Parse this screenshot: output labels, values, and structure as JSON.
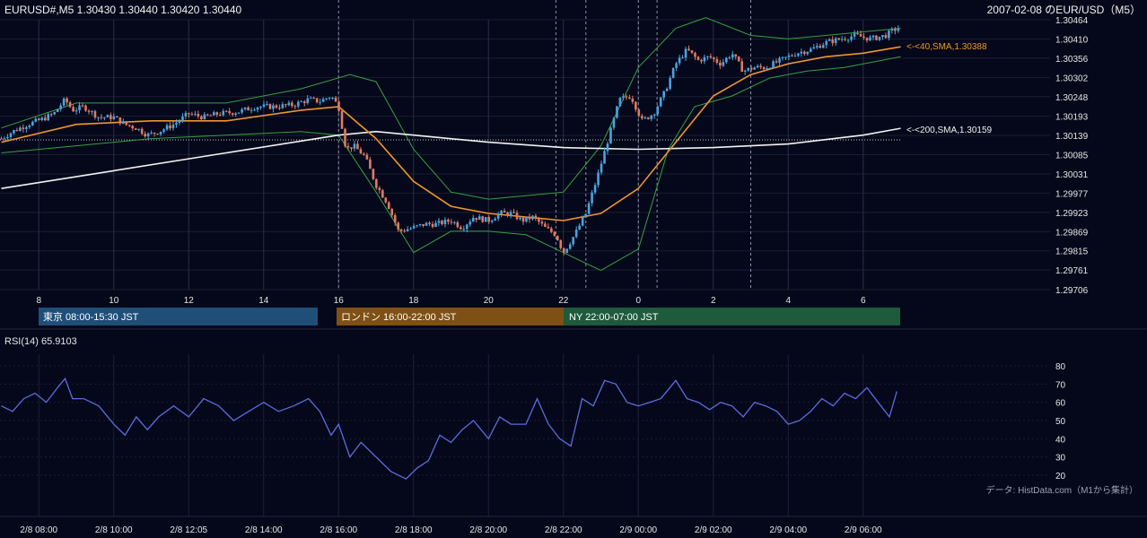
{
  "header": {
    "symbol_info": "EURUSD#,M5 1.30430 1.30440 1.30420 1.30440",
    "title": "2007-02-08 のEUR/USD（M5）"
  },
  "sessions": [
    {
      "label": "東京 08:00-15:30 JST",
      "color": "#1f4e79"
    },
    {
      "label": "ロンドン 16:00-22:00 JST",
      "color": "#7f5014"
    },
    {
      "label": "NY 22:00-07:00 JST",
      "color": "#1e5a3c"
    }
  ],
  "sma_labels": {
    "sma40": "<-<40,SMA,1.30388",
    "sma200": "<-<200,SMA,1.30159"
  },
  "rsi_label": "RSI(14) 65.9103",
  "source_note": "データ: HistData.com（M1から集計）",
  "colors": {
    "background": "#05081a",
    "candle_up": "#4aa3e0",
    "candle_down": "#e07a62",
    "sma40": "#f0962a",
    "sma200": "#f2f2f2",
    "bollinger": "#35a045",
    "rsi": "#5b6ce0",
    "grid": "#1a1e30"
  },
  "chart_data": [
    {
      "type": "candlestick",
      "symbol": "EURUSD",
      "timeframe": "M5",
      "x_tick_labels": [
        "8",
        "10",
        "12",
        "14",
        "16",
        "18",
        "20",
        "22",
        "0",
        "2",
        "4",
        "6"
      ],
      "y_tick_labels": [
        "1.30464",
        "1.30410",
        "1.30356",
        "1.30302",
        "1.30248",
        "1.30193",
        "1.30139",
        "1.30085",
        "1.30031",
        "1.29977",
        "1.29923",
        "1.29869",
        "1.29815",
        "1.29761",
        "1.29706"
      ],
      "ylim": [
        1.29706,
        1.30464
      ],
      "last": {
        "open": 1.3043,
        "high": 1.3044,
        "low": 1.3042,
        "close": 1.3044
      },
      "price_path": [
        [
          7.0,
          1.3013
        ],
        [
          7.3,
          1.3015
        ],
        [
          7.7,
          1.3017
        ],
        [
          8.1,
          1.30185
        ],
        [
          8.4,
          1.302
        ],
        [
          8.7,
          1.3024
        ],
        [
          8.9,
          1.3021
        ],
        [
          9.2,
          1.3022
        ],
        [
          9.6,
          1.3019
        ],
        [
          10.0,
          1.3019
        ],
        [
          10.3,
          1.3017
        ],
        [
          10.6,
          1.3016
        ],
        [
          10.9,
          1.3014
        ],
        [
          11.2,
          1.3015
        ],
        [
          11.6,
          1.3017
        ],
        [
          12.0,
          1.302
        ],
        [
          12.4,
          1.3019
        ],
        [
          12.8,
          1.302
        ],
        [
          13.3,
          1.30205
        ],
        [
          13.8,
          1.3022
        ],
        [
          14.3,
          1.3022
        ],
        [
          14.8,
          1.30225
        ],
        [
          15.2,
          1.3024
        ],
        [
          15.5,
          1.30235
        ],
        [
          15.8,
          1.3025
        ],
        [
          16.0,
          1.3022
        ],
        [
          16.2,
          1.301
        ],
        [
          16.4,
          1.3011
        ],
        [
          16.7,
          1.3008
        ],
        [
          17.0,
          1.3
        ],
        [
          17.3,
          1.2995
        ],
        [
          17.6,
          1.2987
        ],
        [
          18.0,
          1.2988
        ],
        [
          18.3,
          1.2989
        ],
        [
          18.6,
          1.2989
        ],
        [
          19.0,
          1.299
        ],
        [
          19.3,
          1.2988
        ],
        [
          19.6,
          1.2991
        ],
        [
          20.0,
          1.299
        ],
        [
          20.3,
          1.2992
        ],
        [
          20.6,
          1.2992
        ],
        [
          20.9,
          1.299
        ],
        [
          21.2,
          1.2991
        ],
        [
          21.5,
          1.2988
        ],
        [
          21.8,
          1.2986
        ],
        [
          22.0,
          1.2981
        ],
        [
          22.3,
          1.2986
        ],
        [
          22.6,
          1.2992
        ],
        [
          22.9,
          1.3002
        ],
        [
          23.2,
          1.3013
        ],
        [
          23.5,
          1.3024
        ],
        [
          23.8,
          1.3025
        ],
        [
          24.1,
          1.3018
        ],
        [
          24.4,
          1.302
        ],
        [
          24.7,
          1.3026
        ],
        [
          25.0,
          1.3034
        ],
        [
          25.3,
          1.3038
        ],
        [
          25.6,
          1.3035
        ],
        [
          25.9,
          1.3036
        ],
        [
          26.2,
          1.3034
        ],
        [
          26.5,
          1.3037
        ],
        [
          26.8,
          1.3032
        ],
        [
          27.1,
          1.3033
        ],
        [
          27.4,
          1.3033
        ],
        [
          27.8,
          1.3035
        ],
        [
          28.2,
          1.3037
        ],
        [
          28.6,
          1.3038
        ],
        [
          29.0,
          1.304
        ],
        [
          29.4,
          1.3041
        ],
        [
          29.8,
          1.3042
        ],
        [
          30.2,
          1.3041
        ],
        [
          30.6,
          1.3042
        ],
        [
          30.9,
          1.3044
        ]
      ],
      "series": [
        {
          "name": "40,SMA",
          "last": 1.30388,
          "points": [
            [
              7.0,
              1.3012
            ],
            [
              9.0,
              1.3017
            ],
            [
              11.0,
              1.3018
            ],
            [
              13.0,
              1.3018
            ],
            [
              15.0,
              1.3021
            ],
            [
              16.0,
              1.3022
            ],
            [
              17.0,
              1.3013
            ],
            [
              18.0,
              1.3001
            ],
            [
              19.0,
              1.2994
            ],
            [
              20.0,
              1.2992
            ],
            [
              21.0,
              1.2991
            ],
            [
              22.0,
              1.299
            ],
            [
              23.0,
              1.2992
            ],
            [
              24.0,
              1.2999
            ],
            [
              25.0,
              1.3012
            ],
            [
              26.0,
              1.3025
            ],
            [
              27.0,
              1.3031
            ],
            [
              28.0,
              1.3034
            ],
            [
              29.0,
              1.3036
            ],
            [
              30.0,
              1.3037
            ],
            [
              31.0,
              1.30388
            ]
          ]
        },
        {
          "name": "200,SMA",
          "last": 1.30159,
          "points": [
            [
              7.0,
              1.2999
            ],
            [
              10.0,
              1.3004
            ],
            [
              13.0,
              1.3009
            ],
            [
              16.0,
              1.3014
            ],
            [
              17.0,
              1.3015
            ],
            [
              18.0,
              1.3014
            ],
            [
              20.0,
              1.3012
            ],
            [
              22.0,
              1.30105
            ],
            [
              24.0,
              1.301
            ],
            [
              26.0,
              1.30105
            ],
            [
              28.0,
              1.30115
            ],
            [
              30.0,
              1.3014
            ],
            [
              31.0,
              1.30159
            ]
          ]
        },
        {
          "name": "BB upper",
          "points": [
            [
              7.0,
              1.3016
            ],
            [
              9.0,
              1.3023
            ],
            [
              11.0,
              1.3023
            ],
            [
              13.0,
              1.3023
            ],
            [
              15.0,
              1.3027
            ],
            [
              16.3,
              1.3031
            ],
            [
              17.0,
              1.3029
            ],
            [
              18.0,
              1.301
            ],
            [
              19.0,
              1.2998
            ],
            [
              20.0,
              1.2996
            ],
            [
              21.0,
              1.2997
            ],
            [
              22.0,
              1.2998
            ],
            [
              23.0,
              1.3011
            ],
            [
              24.0,
              1.3033
            ],
            [
              25.0,
              1.3044
            ],
            [
              25.8,
              1.3047
            ],
            [
              27.0,
              1.3042
            ],
            [
              28.0,
              1.3041
            ],
            [
              29.0,
              1.3042
            ],
            [
              30.0,
              1.3043
            ],
            [
              31.0,
              1.3044
            ]
          ]
        },
        {
          "name": "BB lower",
          "points": [
            [
              7.0,
              1.3009
            ],
            [
              9.0,
              1.3011
            ],
            [
              11.0,
              1.3013
            ],
            [
              13.0,
              1.3014
            ],
            [
              15.0,
              1.3015
            ],
            [
              16.0,
              1.3014
            ],
            [
              17.0,
              1.2998
            ],
            [
              18.0,
              1.2981
            ],
            [
              19.0,
              1.2987
            ],
            [
              20.0,
              1.2987
            ],
            [
              21.0,
              1.2986
            ],
            [
              22.0,
              1.2981
            ],
            [
              23.0,
              1.2976
            ],
            [
              24.0,
              1.2982
            ],
            [
              24.8,
              1.301
            ],
            [
              25.5,
              1.3022
            ],
            [
              26.5,
              1.3025
            ],
            [
              27.5,
              1.303
            ],
            [
              28.5,
              1.3032
            ],
            [
              29.5,
              1.3033
            ],
            [
              31.0,
              1.3036
            ]
          ]
        }
      ]
    },
    {
      "type": "line",
      "name": "RSI(14)",
      "last": 65.9103,
      "y_tick_labels": [
        "80",
        "70",
        "60",
        "50",
        "40",
        "30",
        "20"
      ],
      "ylim": [
        15,
        85
      ],
      "x_tick_labels": [
        "2/8 08:00",
        "2/8 10:00",
        "2/8 12:05",
        "2/8 14:00",
        "2/8 16:00",
        "2/8 18:00",
        "2/8 20:00",
        "2/8 22:00",
        "2/9 00:00",
        "2/9 02:00",
        "2/9 04:00",
        "2/9 06:00"
      ],
      "points": [
        [
          7.0,
          58
        ],
        [
          7.3,
          55
        ],
        [
          7.6,
          62
        ],
        [
          7.9,
          65
        ],
        [
          8.2,
          60
        ],
        [
          8.5,
          68
        ],
        [
          8.7,
          73
        ],
        [
          8.9,
          62
        ],
        [
          9.2,
          62
        ],
        [
          9.6,
          58
        ],
        [
          10.0,
          48
        ],
        [
          10.3,
          42
        ],
        [
          10.6,
          52
        ],
        [
          10.9,
          45
        ],
        [
          11.2,
          52
        ],
        [
          11.6,
          58
        ],
        [
          12.0,
          52
        ],
        [
          12.4,
          62
        ],
        [
          12.8,
          58
        ],
        [
          13.2,
          50
        ],
        [
          13.6,
          55
        ],
        [
          14.0,
          60
        ],
        [
          14.4,
          55
        ],
        [
          14.8,
          58
        ],
        [
          15.2,
          62
        ],
        [
          15.5,
          55
        ],
        [
          15.8,
          42
        ],
        [
          16.0,
          48
        ],
        [
          16.3,
          30
        ],
        [
          16.6,
          38
        ],
        [
          17.0,
          30
        ],
        [
          17.4,
          22
        ],
        [
          17.8,
          18
        ],
        [
          18.1,
          24
        ],
        [
          18.4,
          28
        ],
        [
          18.7,
          42
        ],
        [
          19.0,
          38
        ],
        [
          19.3,
          45
        ],
        [
          19.6,
          50
        ],
        [
          20.0,
          40
        ],
        [
          20.3,
          52
        ],
        [
          20.6,
          48
        ],
        [
          21.0,
          48
        ],
        [
          21.3,
          62
        ],
        [
          21.6,
          48
        ],
        [
          21.9,
          40
        ],
        [
          22.2,
          36
        ],
        [
          22.5,
          62
        ],
        [
          22.8,
          58
        ],
        [
          23.1,
          72
        ],
        [
          23.4,
          70
        ],
        [
          23.7,
          60
        ],
        [
          24.0,
          58
        ],
        [
          24.3,
          60
        ],
        [
          24.6,
          62
        ],
        [
          25.0,
          72
        ],
        [
          25.3,
          62
        ],
        [
          25.6,
          60
        ],
        [
          25.9,
          56
        ],
        [
          26.2,
          60
        ],
        [
          26.5,
          58
        ],
        [
          26.8,
          52
        ],
        [
          27.1,
          60
        ],
        [
          27.4,
          58
        ],
        [
          27.7,
          55
        ],
        [
          28.0,
          48
        ],
        [
          28.3,
          50
        ],
        [
          28.6,
          55
        ],
        [
          28.9,
          62
        ],
        [
          29.2,
          58
        ],
        [
          29.5,
          65
        ],
        [
          29.8,
          62
        ],
        [
          30.1,
          68
        ],
        [
          30.4,
          60
        ],
        [
          30.7,
          52
        ],
        [
          30.9,
          66
        ]
      ]
    }
  ]
}
